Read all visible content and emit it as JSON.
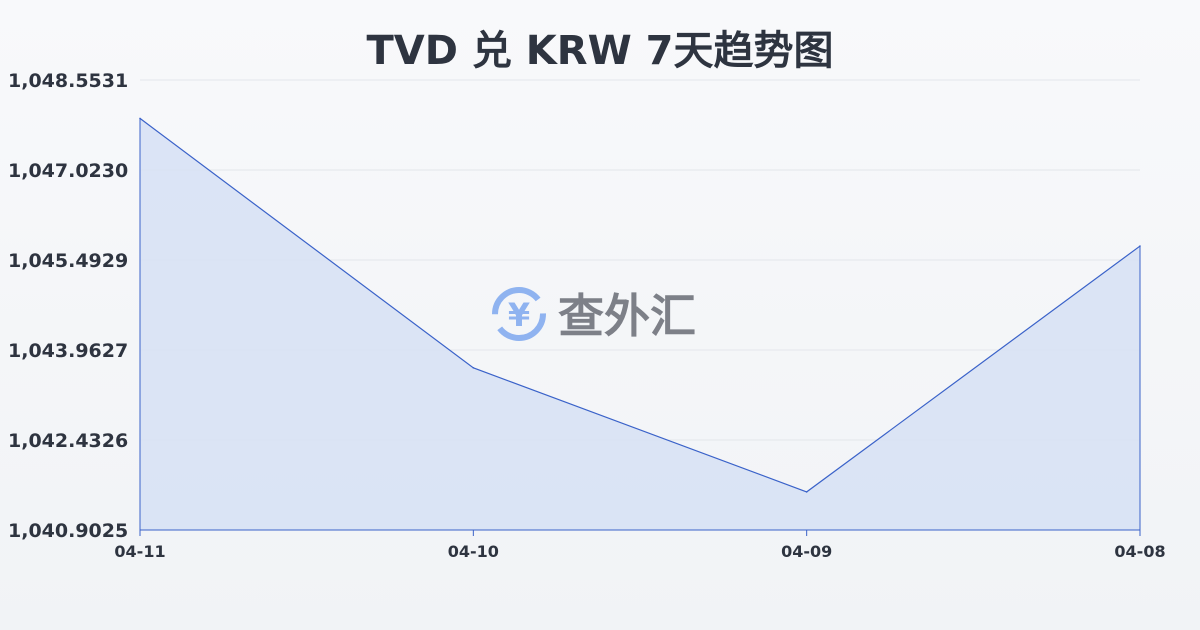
{
  "chart_data": {
    "type": "area",
    "title": "TVD 兑 KRW 7天趋势图",
    "categories": [
      "04-11",
      "04-10",
      "04-09",
      "04-08"
    ],
    "values": [
      1047.9,
      1043.66,
      1041.55,
      1045.73
    ],
    "yticks": [
      "1,048.5531",
      "1,047.0230",
      "1,045.4929",
      "1,043.9627",
      "1,042.4326",
      "1,040.9025"
    ],
    "ylim": [
      1040.9025,
      1048.5531
    ],
    "grid": true,
    "colors": {
      "line": "#3a62c9",
      "fill": "#d6e0f5"
    }
  },
  "watermark": "查外汇"
}
